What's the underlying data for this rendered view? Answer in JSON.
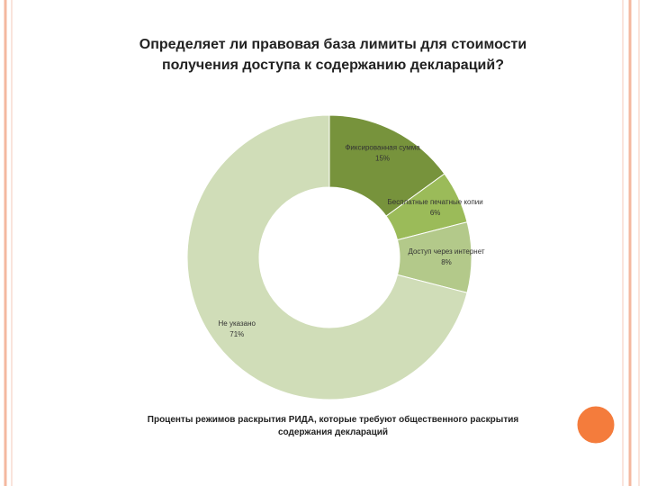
{
  "chart_data": {
    "type": "donut",
    "title": "Определяет ли правовая база лимиты для стоимости получения доступа к содержанию деклараций?",
    "caption": "Проценты режимов раскрытия РИДА, которые требуют общественного раскрытия содержания деклараций",
    "categories": [
      "Фиксированная сумма",
      "Бесплатные печатные копии",
      "Доступ через интернет",
      "Не указано"
    ],
    "values": [
      15,
      6,
      8,
      71
    ],
    "value_labels": [
      "15%",
      "6%",
      "8%",
      "71%"
    ],
    "colors": [
      "#77933c",
      "#9bbb59",
      "#b3c98a",
      "#d0ddb8"
    ]
  }
}
